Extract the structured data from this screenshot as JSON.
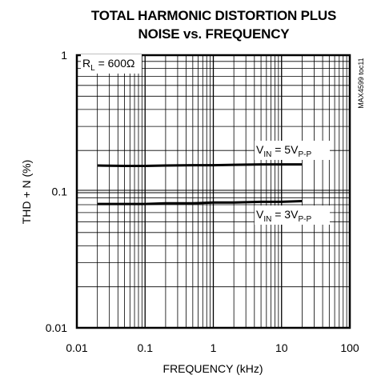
{
  "chart_data": {
    "type": "line",
    "title_line1": "TOTAL HARMONIC DISTORTION PLUS",
    "title_line2": "NOISE vs. FREQUENCY",
    "xlabel": "FREQUENCY (kHz)",
    "ylabel": "THD + N (%)",
    "x_scale": "log",
    "y_scale": "log",
    "xlim": [
      0.01,
      100
    ],
    "ylim": [
      0.01,
      1
    ],
    "grid": true,
    "x_ticks": [
      {
        "value": 0.01,
        "label": "0.01"
      },
      {
        "value": 0.1,
        "label": "0.1"
      },
      {
        "value": 1,
        "label": "1"
      },
      {
        "value": 10,
        "label": "10"
      },
      {
        "value": 100,
        "label": "100"
      }
    ],
    "y_ticks": [
      {
        "value": 1,
        "label": "1"
      },
      {
        "value": 0.1,
        "label": "0.1"
      },
      {
        "value": 0.01,
        "label": "0.01"
      }
    ],
    "load_label": {
      "prefix": "R",
      "sub": "L",
      "text": " = 600Ω"
    },
    "figure_code": "MAX4599 toc11",
    "series": [
      {
        "label": {
          "prefix": "V",
          "sub1": "IN",
          "mid": " = 5V",
          "sub2": "P-P"
        },
        "x": [
          0.02,
          0.05,
          0.1,
          0.2,
          0.5,
          1,
          2,
          5,
          10,
          20
        ],
        "y": [
          0.155,
          0.154,
          0.154,
          0.155,
          0.156,
          0.156,
          0.157,
          0.158,
          0.158,
          0.158
        ]
      },
      {
        "label": {
          "prefix": "V",
          "sub1": "IN",
          "mid": " = 3V",
          "sub2": "P-P"
        },
        "x": [
          0.02,
          0.05,
          0.1,
          0.2,
          0.5,
          1,
          2,
          5,
          10,
          20
        ],
        "y": [
          0.081,
          0.081,
          0.081,
          0.082,
          0.082,
          0.083,
          0.083,
          0.084,
          0.084,
          0.085
        ]
      }
    ]
  }
}
